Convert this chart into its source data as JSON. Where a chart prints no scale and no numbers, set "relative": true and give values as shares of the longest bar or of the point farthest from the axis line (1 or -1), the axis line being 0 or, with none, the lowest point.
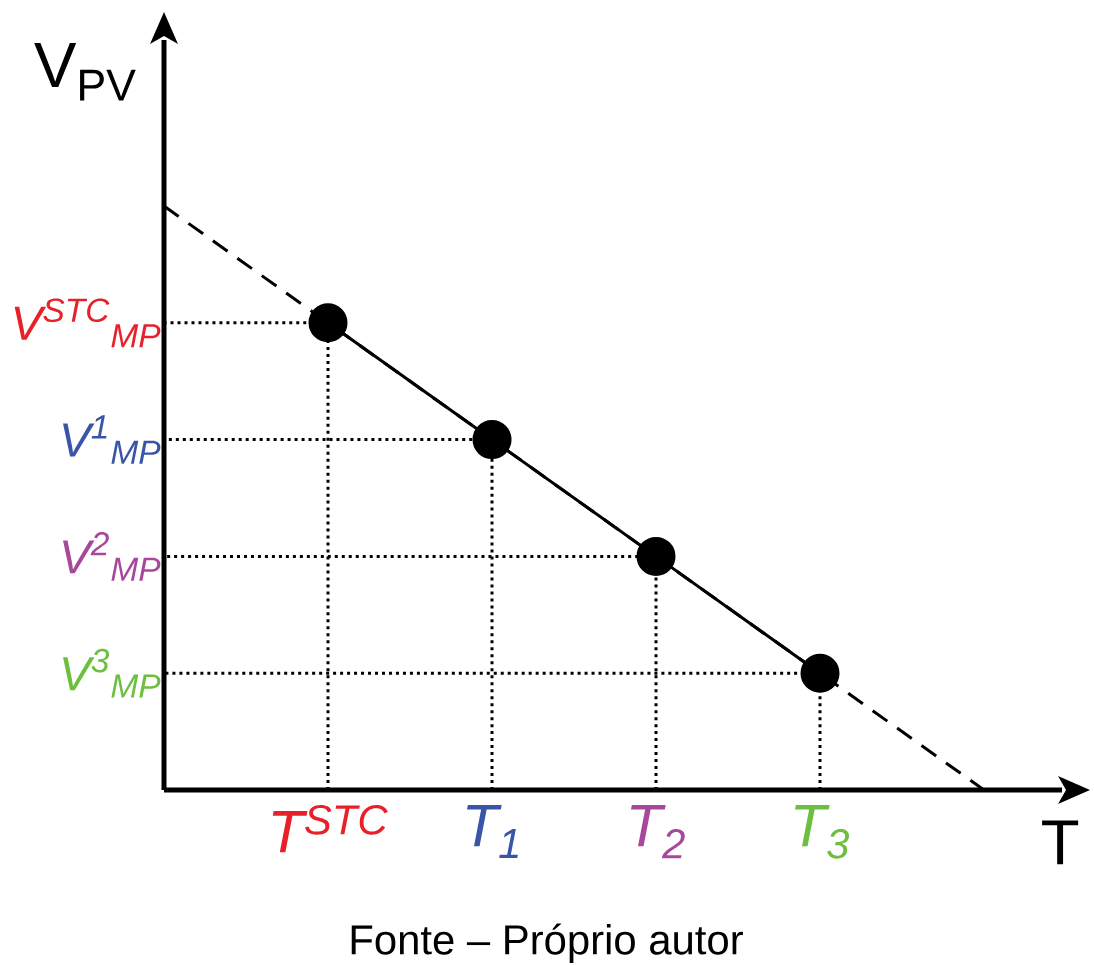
{
  "chart_data": {
    "type": "line",
    "relative": true,
    "xlabel": "T",
    "ylabel": "V$_{PV}$",
    "categories": [
      null,
      "T$^{STC}$",
      "T$_{1}$",
      "T$_{2}$",
      "T$_{3}$",
      null
    ],
    "series": [
      {
        "color": "#000000",
        "values": [
          1,
          0.8,
          0.6,
          0.4,
          0.2,
          0
        ],
        "line_style": "dashed",
        "marker": "none"
      },
      {
        "color": "#000000",
        "values": [
          null,
          0.8,
          0.6,
          0.4,
          0.2,
          null
        ],
        "line_style": "solid",
        "marker": "circle"
      }
    ],
    "annotations": [
      "V$^{STC}$$_{MP}$",
      "V$^{1}$$_{MP}$",
      "V$^{2}$$_{MP}$",
      "V$^{3}$$_{MP}$",
      "Fonte – Próprio autor"
    ]
  }
}
